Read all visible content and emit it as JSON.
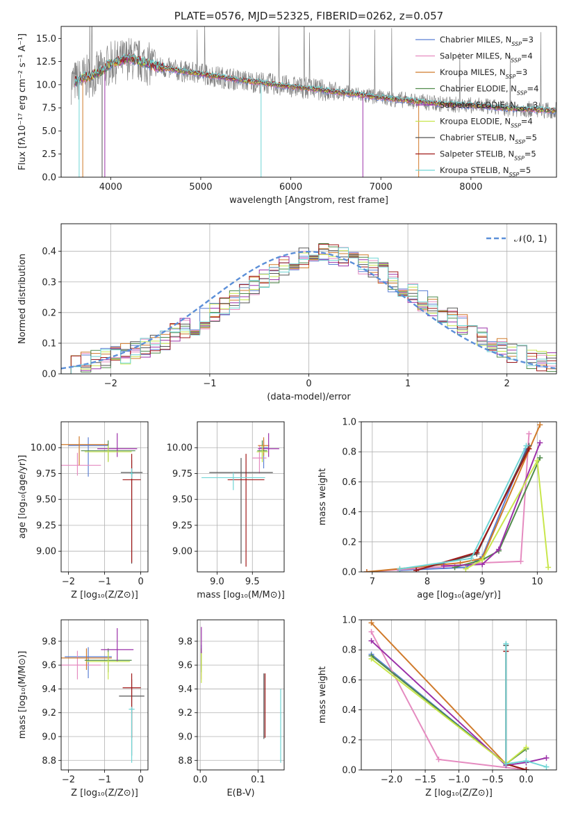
{
  "series_colors": [
    "#5b7fd3",
    "#e58bc0",
    "#d07a2a",
    "#4f8a4a",
    "#9b30a8",
    "#c8e64c",
    "#555555",
    "#a01818",
    "#6fd5d5"
  ],
  "chart_data": [
    {
      "id": "spectrum",
      "type": "line",
      "title": "PLATE=0576, MJD=52325, FIBERID=0262, z=0.057",
      "xlabel": "wavelength [Angstrom, rest frame]",
      "ylabel": "Flux [fλ10⁻¹⁷ erg cm⁻² s⁻¹ A⁻¹]",
      "xlim": [
        3450,
        8950
      ],
      "ylim": [
        0,
        16.3
      ],
      "xticks": [
        "4000",
        "5000",
        "6000",
        "7000",
        "8000"
      ],
      "yticks": [
        "0.0",
        "2.5",
        "5.0",
        "7.5",
        "10.0",
        "12.5",
        "15.0"
      ],
      "legend_position": "upper-right",
      "legend": [
        "Chabrier MILES, N_SSP=3",
        "Salpeter MILES, N_SSP=4",
        "Kroupa MILES, N_SSP=3",
        "Chabrier ELODIE, N_SSP=4",
        "Salpeter ELODIE, N_SSP=3",
        "Kroupa ELODIE, N_SSP=4",
        "Chabrier STELIB, N_SSP=5",
        "Salpeter STELIB, N_SSP=5",
        "Kroupa STELIB, N_SSP=5"
      ],
      "legend_color_index": [
        0,
        1,
        2,
        3,
        4,
        5,
        6,
        7,
        8
      ],
      "continuum": {
        "x": [
          3550,
          3620,
          3700,
          3800,
          3900,
          4000,
          4100,
          4200,
          4300,
          4400,
          4500,
          4700,
          4900,
          5100,
          5300,
          5500,
          5700,
          5900,
          6100,
          6300,
          6500,
          6700,
          6900,
          7100,
          7300,
          7500,
          7700,
          7900,
          8100,
          8300,
          8500,
          8700,
          8900
        ],
        "y": [
          10.2,
          10.4,
          10.8,
          11.0,
          11.5,
          12.3,
          12.5,
          12.9,
          12.6,
          12.3,
          12.0,
          11.6,
          11.3,
          11.0,
          10.7,
          10.4,
          10.2,
          9.9,
          9.7,
          9.5,
          9.2,
          9.0,
          8.7,
          8.5,
          8.3,
          8.1,
          7.9,
          7.8,
          7.7,
          7.5,
          7.4,
          7.3,
          7.2
        ]
      }
    },
    {
      "id": "residuals",
      "type": "histogram",
      "xlabel": "(data-model)/error",
      "ylabel": "Normed distribution",
      "xlim": [
        -2.5,
        2.5
      ],
      "ylim": [
        0,
        0.49
      ],
      "xticks": [
        "−2",
        "−1",
        "0",
        "1",
        "2"
      ],
      "yticks": [
        "0.0",
        "0.1",
        "0.2",
        "0.3",
        "0.4"
      ],
      "grid": true,
      "legend": [
        "𝒩(0, 1)"
      ],
      "legend_position": "upper-right",
      "bin_width": 0.1,
      "bin_start": -2.5,
      "mean_hist": [
        0.03,
        0.035,
        0.04,
        0.045,
        0.05,
        0.055,
        0.065,
        0.075,
        0.085,
        0.095,
        0.11,
        0.13,
        0.15,
        0.16,
        0.18,
        0.2,
        0.22,
        0.24,
        0.26,
        0.29,
        0.31,
        0.33,
        0.35,
        0.37,
        0.38,
        0.39,
        0.4,
        0.39,
        0.38,
        0.37,
        0.36,
        0.35,
        0.33,
        0.3,
        0.28,
        0.26,
        0.24,
        0.22,
        0.2,
        0.18,
        0.16,
        0.14,
        0.12,
        0.1,
        0.085,
        0.07,
        0.06,
        0.05,
        0.04,
        0.035
      ]
    },
    {
      "id": "age_vs_Z",
      "type": "scatter",
      "xlabel": "Z [log₁₀(Z/Z⊙)]",
      "ylabel": "age  [log₁₀(age/yr)]",
      "xlim": [
        -2.2,
        0.2
      ],
      "ylim": [
        8.8,
        10.25
      ],
      "xticks": [
        "−2",
        "−1",
        "0"
      ],
      "yticks": [
        "9.00",
        "9.25",
        "9.50",
        "9.75",
        "10.00"
      ],
      "grid": true,
      "points": [
        {
          "x": -1.45,
          "y": 10.02,
          "xerr": 0.55,
          "yerr": [
            0.3,
            0.08
          ]
        },
        {
          "x": -1.75,
          "y": 9.83,
          "xerr": 0.65,
          "yerr": [
            0.1,
            0.12
          ]
        },
        {
          "x": -1.7,
          "y": 10.03,
          "xerr": 0.8,
          "yerr": [
            0.2,
            0.08
          ]
        },
        {
          "x": -0.9,
          "y": 9.97,
          "xerr": 0.75,
          "yerr": [
            0.1,
            0.1
          ]
        },
        {
          "x": -0.65,
          "y": 9.99,
          "xerr": 0.55,
          "yerr": [
            0.08,
            0.15
          ]
        },
        {
          "x": -0.9,
          "y": 9.96,
          "xerr": 0.65,
          "yerr": [
            0.1,
            0.06
          ]
        },
        {
          "x": -0.25,
          "y": 9.76,
          "xerr": 0.3,
          "yerr": [
            0.88,
            0.12
          ]
        },
        {
          "x": -0.25,
          "y": 9.69,
          "xerr": 0.25,
          "yerr": [
            0.8,
            0.25
          ]
        },
        {
          "x": -0.25,
          "y": 9.75,
          "xerr": 0.05,
          "yerr": [
            0.05,
            0.05
          ]
        }
      ]
    },
    {
      "id": "age_vs_mass",
      "type": "scatter",
      "xlabel": "mass [log₁₀(M/M⊙)]",
      "ylabel": "",
      "xlim": [
        8.72,
        9.95
      ],
      "ylim": [
        8.8,
        10.25
      ],
      "xticks": [
        "9.0",
        "9.5"
      ],
      "yticks": [
        "9.00",
        "9.25",
        "9.50",
        "9.75",
        "10.00"
      ],
      "grid": true,
      "points": [
        {
          "x": 9.66,
          "y": 10.0,
          "xerr": 0.06,
          "yerr": [
            0.2,
            0.08
          ]
        },
        {
          "x": 9.6,
          "y": 9.9,
          "xerr": 0.1,
          "yerr": [
            0.15,
            0.12
          ]
        },
        {
          "x": 9.66,
          "y": 10.02,
          "xerr": 0.08,
          "yerr": [
            0.1,
            0.08
          ]
        },
        {
          "x": 9.64,
          "y": 9.97,
          "xerr": 0.07,
          "yerr": [
            0.08,
            0.1
          ]
        },
        {
          "x": 9.73,
          "y": 9.99,
          "xerr": 0.15,
          "yerr": [
            0.08,
            0.15
          ]
        },
        {
          "x": 9.64,
          "y": 9.96,
          "xerr": 0.08,
          "yerr": [
            0.1,
            0.06
          ]
        },
        {
          "x": 9.34,
          "y": 9.76,
          "xerr": 0.45,
          "yerr": [
            0.88,
            0.14
          ]
        },
        {
          "x": 9.41,
          "y": 9.69,
          "xerr": 0.26,
          "yerr": [
            0.84,
            0.25
          ]
        },
        {
          "x": 9.23,
          "y": 9.71,
          "xerr": 0.45,
          "yerr": [
            0.12,
            0.05
          ]
        }
      ]
    },
    {
      "id": "massweight_vs_age",
      "type": "line",
      "xlabel": "age  [log₁₀(age/yr)]",
      "ylabel": "mass weight",
      "xlim": [
        6.8,
        10.35
      ],
      "ylim": [
        0,
        1.0
      ],
      "xticks": [
        "7",
        "8",
        "9",
        "10"
      ],
      "yticks": [
        "0.0",
        "0.2",
        "0.4",
        "0.6",
        "0.8",
        "1.0"
      ],
      "grid": true,
      "series": [
        {
          "x": [
            7.5,
            8.7,
            9.0,
            9.8
          ],
          "y": [
            0.01,
            0.03,
            0.1,
            0.82
          ]
        },
        {
          "x": [
            6.9,
            8.5,
            9.0,
            9.7,
            9.85
          ],
          "y": [
            0.0,
            0.04,
            0.06,
            0.07,
            0.92
          ]
        },
        {
          "x": [
            6.9,
            8.6,
            9.0,
            10.05
          ],
          "y": [
            0.0,
            0.06,
            0.09,
            0.98
          ]
        },
        {
          "x": [
            8.5,
            9.0,
            9.3,
            10.05
          ],
          "y": [
            0.03,
            0.08,
            0.14,
            0.76
          ]
        },
        {
          "x": [
            8.3,
            9.0,
            9.3,
            10.05
          ],
          "y": [
            0.04,
            0.05,
            0.15,
            0.86
          ]
        },
        {
          "x": [
            8.7,
            9.0,
            10.0,
            10.2
          ],
          "y": [
            0.02,
            0.08,
            0.74,
            0.03
          ]
        },
        {
          "x": [
            7.8,
            8.9,
            9.85
          ],
          "y": [
            0.01,
            0.12,
            0.84
          ]
        },
        {
          "x": [
            7.8,
            8.9,
            9.85
          ],
          "y": [
            0.01,
            0.13,
            0.82
          ]
        },
        {
          "x": [
            7.5,
            8.8,
            9.8
          ],
          "y": [
            0.02,
            0.09,
            0.84
          ]
        }
      ]
    },
    {
      "id": "mass_vs_Z",
      "type": "scatter",
      "xlabel": "Z [log₁₀(Z/Z⊙)]",
      "ylabel": "mass [log₁₀(M/M⊙)]",
      "xlim": [
        -2.2,
        0.2
      ],
      "ylim": [
        8.72,
        9.98
      ],
      "xticks": [
        "−2",
        "−1",
        "0"
      ],
      "yticks": [
        "8.8",
        "9.0",
        "9.2",
        "9.4",
        "9.6",
        "9.8"
      ],
      "grid": true,
      "points": [
        {
          "x": -1.45,
          "y": 9.67,
          "xerr": 0.65,
          "yerr": [
            0.18,
            0.08
          ]
        },
        {
          "x": -1.75,
          "y": 9.6,
          "xerr": 0.65,
          "yerr": [
            0.12,
            0.12
          ]
        },
        {
          "x": -1.5,
          "y": 9.66,
          "xerr": 0.7,
          "yerr": [
            0.1,
            0.08
          ]
        },
        {
          "x": -0.9,
          "y": 9.64,
          "xerr": 0.65,
          "yerr": [
            0.1,
            0.1
          ]
        },
        {
          "x": -0.65,
          "y": 9.73,
          "xerr": 0.45,
          "yerr": [
            0.1,
            0.18
          ]
        },
        {
          "x": -0.9,
          "y": 9.63,
          "xerr": 0.6,
          "yerr": [
            0.15,
            0.08
          ]
        },
        {
          "x": -0.25,
          "y": 9.34,
          "xerr": 0.35,
          "yerr": [
            0.5,
            0.14
          ]
        },
        {
          "x": -0.25,
          "y": 9.41,
          "xerr": 0.25,
          "yerr": [
            0.42,
            0.12
          ]
        },
        {
          "x": -0.25,
          "y": 9.23,
          "xerr": 0.08,
          "yerr": [
            0.45,
            0.02
          ]
        }
      ]
    },
    {
      "id": "mass_vs_EBV",
      "type": "scatter",
      "xlabel": "E(B-V)",
      "ylabel": "",
      "xlim": [
        -0.005,
        0.145
      ],
      "ylim": [
        8.72,
        9.98
      ],
      "xticks": [
        "0.0",
        "0.1"
      ],
      "yticks": [
        "8.8",
        "9.0",
        "9.2",
        "9.4",
        "9.6",
        "9.8"
      ],
      "grid": true,
      "points": [
        {
          "x": 0.002,
          "y": 9.67,
          "xerr": 0.0,
          "yerr": [
            0.1,
            0.1
          ]
        },
        {
          "x": 0.002,
          "y": 9.6,
          "xerr": 0.0,
          "yerr": [
            0.12,
            0.1
          ]
        },
        {
          "x": 0.002,
          "y": 9.66,
          "xerr": 0.0,
          "yerr": [
            0.1,
            0.08
          ]
        },
        {
          "x": 0.002,
          "y": 9.64,
          "xerr": 0.0,
          "yerr": [
            0.1,
            0.1
          ]
        },
        {
          "x": 0.002,
          "y": 9.8,
          "xerr": 0.0,
          "yerr": [
            0.1,
            0.12
          ]
        },
        {
          "x": 0.002,
          "y": 9.6,
          "xerr": 0.0,
          "yerr": [
            0.15,
            0.1
          ]
        },
        {
          "x": 0.11,
          "y": 9.25,
          "xerr": 0.0,
          "yerr": [
            0.27,
            0.28
          ]
        },
        {
          "x": 0.112,
          "y": 9.25,
          "xerr": 0.0,
          "yerr": [
            0.26,
            0.28
          ]
        },
        {
          "x": 0.139,
          "y": 9.1,
          "xerr": 0.0,
          "yerr": [
            0.32,
            0.3
          ]
        }
      ]
    },
    {
      "id": "massweight_vs_Z",
      "type": "line",
      "xlabel": "Z [log₁₀(Z/Z⊙)]",
      "ylabel": "mass weight",
      "xlim": [
        -2.45,
        0.45
      ],
      "ylim": [
        0,
        1.0
      ],
      "xticks": [
        "−2.0",
        "−1.5",
        "−1.0",
        "−0.5",
        "0.0"
      ],
      "yticks": [
        "0.0",
        "0.2",
        "0.4",
        "0.6",
        "0.8",
        "1.0"
      ],
      "grid": true,
      "series": [
        {
          "x": [
            -2.3,
            -0.3,
            0.0
          ],
          "y": [
            0.77,
            0.04,
            0.0
          ]
        },
        {
          "x": [
            -2.3,
            -1.3,
            0.0
          ],
          "y": [
            0.92,
            0.07,
            0.0
          ]
        },
        {
          "x": [
            -2.3,
            -0.3,
            0.0
          ],
          "y": [
            0.98,
            0.04,
            0.0
          ]
        },
        {
          "x": [
            -2.3,
            -0.3,
            0.0
          ],
          "y": [
            0.76,
            0.04,
            0.14
          ]
        },
        {
          "x": [
            -2.3,
            -0.3,
            0.0,
            0.3
          ],
          "y": [
            0.86,
            0.03,
            0.05,
            0.08
          ]
        },
        {
          "x": [
            -2.3,
            -0.3,
            0.0
          ],
          "y": [
            0.74,
            0.04,
            0.15
          ]
        },
        {
          "x": [
            -0.3,
            -0.3,
            0.0
          ],
          "y": [
            0.83,
            0.04,
            0.0
          ]
        },
        {
          "x": [
            -0.3,
            -0.3,
            0.0
          ],
          "y": [
            0.79,
            0.04,
            0.0
          ]
        },
        {
          "x": [
            -0.3,
            -0.3,
            0.0,
            0.3
          ],
          "y": [
            0.84,
            0.04,
            0.06,
            0.02
          ]
        }
      ]
    }
  ]
}
